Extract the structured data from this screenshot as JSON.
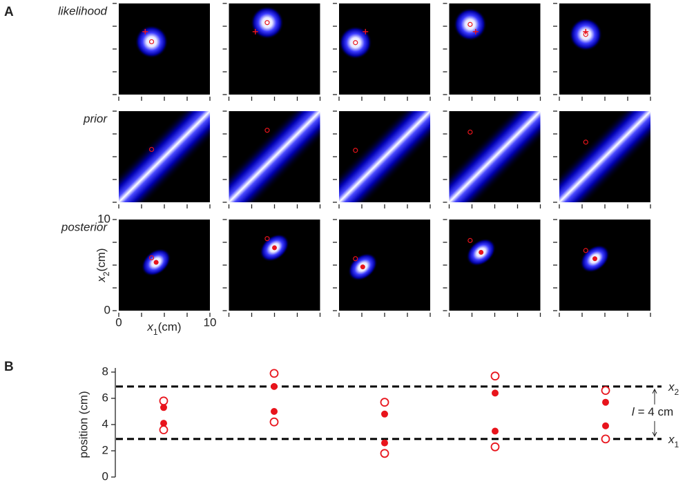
{
  "chart_data": [
    {
      "type": "heatmap-grid",
      "panel_label": "A",
      "row_labels": [
        "likelihood",
        "prior",
        "posterior"
      ],
      "xlabel": {
        "var": "x",
        "sub": "1",
        "unit": "(cm)"
      },
      "ylabel": {
        "var": "x",
        "sub": "2",
        "unit": "(cm)"
      },
      "xlim": [
        0,
        10
      ],
      "ylim": [
        0,
        10
      ],
      "xticks": [
        0,
        10
      ],
      "yticks": [
        0,
        10
      ],
      "minor_ticks": [
        2.5,
        5,
        7.5
      ],
      "color": "#e8141c"
    },
    {
      "type": "dot",
      "panel_label": "B",
      "ylabel": "position (cm)",
      "ylim": [
        0,
        8
      ],
      "yticks": [
        0,
        2,
        4,
        6,
        8
      ],
      "color": "#e8141c",
      "measured_x1": [
        3.6,
        4.2,
        1.8,
        2.3,
        2.9
      ],
      "measured_x2": [
        5.8,
        7.9,
        5.7,
        7.7,
        6.6
      ],
      "posterior_x1": [
        4.1,
        5.0,
        2.6,
        3.5,
        3.9
      ],
      "posterior_x2": [
        5.3,
        6.9,
        4.8,
        6.4,
        5.7
      ],
      "lines": [
        {
          "value": 6.9,
          "var": "x",
          "sub": "2"
        },
        {
          "value": 2.9,
          "var": "x",
          "sub": "1"
        }
      ],
      "span_label": {
        "var": "l",
        "text": "= 4 cm"
      }
    }
  ]
}
